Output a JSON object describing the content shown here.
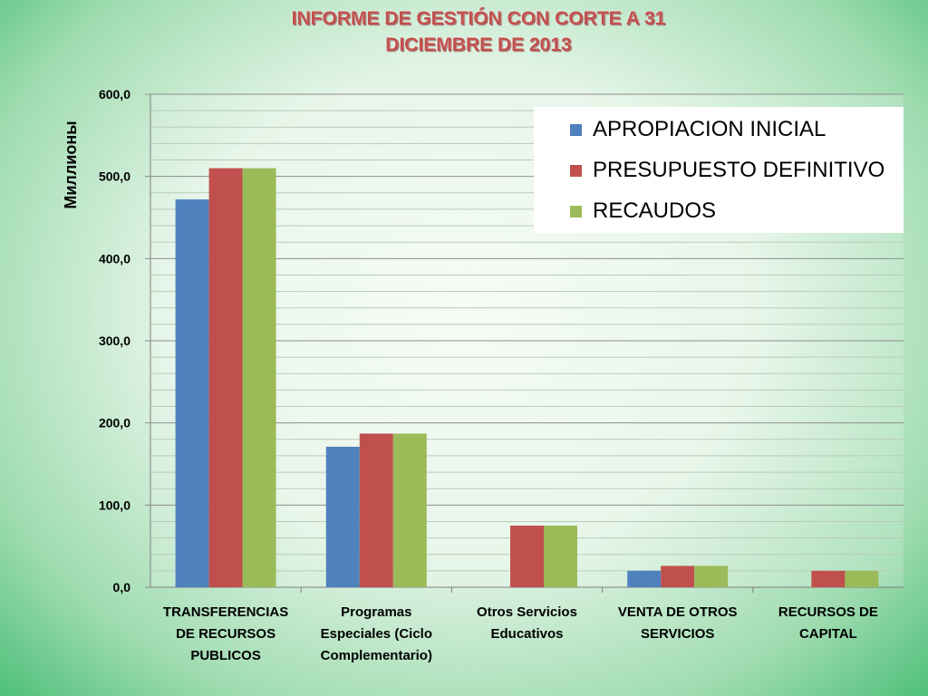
{
  "title": {
    "line1": "INFORME DE GESTIÓN CON CORTE A 31",
    "line2": "DICIEMBRE DE 2013"
  },
  "colors": {
    "apropiacion": "#4f81bd",
    "presupuesto": "#c0504d",
    "recaudos": "#9bbb59"
  },
  "chart_data": {
    "type": "bar",
    "title": "INFORME DE GESTIÓN CON CORTE A 31 DICIEMBRE DE 2013",
    "ylabel": "Миллионы",
    "xlabel": "",
    "ylim": [
      0,
      600
    ],
    "yticks": [
      "0,0",
      "100,0",
      "200,0",
      "300,0",
      "400,0",
      "500,0",
      "600,0"
    ],
    "grid": true,
    "legend_position": "top-right",
    "categories": [
      [
        "TRANSFERENCIAS",
        "DE RECURSOS",
        "PUBLICOS"
      ],
      [
        "Programas",
        "Especiales (Ciclo",
        "Complementario)"
      ],
      [
        "Otros Servicios",
        "Educativos"
      ],
      [
        "VENTA DE OTROS",
        "SERVICIOS"
      ],
      [
        "RECURSOS DE",
        "CAPITAL"
      ]
    ],
    "series": [
      {
        "name": "APROPIACION INICIAL",
        "values": [
          472,
          171,
          0,
          20,
          0
        ]
      },
      {
        "name": "PRESUPUESTO DEFINITIVO",
        "values": [
          510,
          187,
          75,
          26,
          20
        ]
      },
      {
        "name": "RECAUDOS",
        "values": [
          510,
          187,
          75,
          26,
          20
        ]
      }
    ]
  }
}
